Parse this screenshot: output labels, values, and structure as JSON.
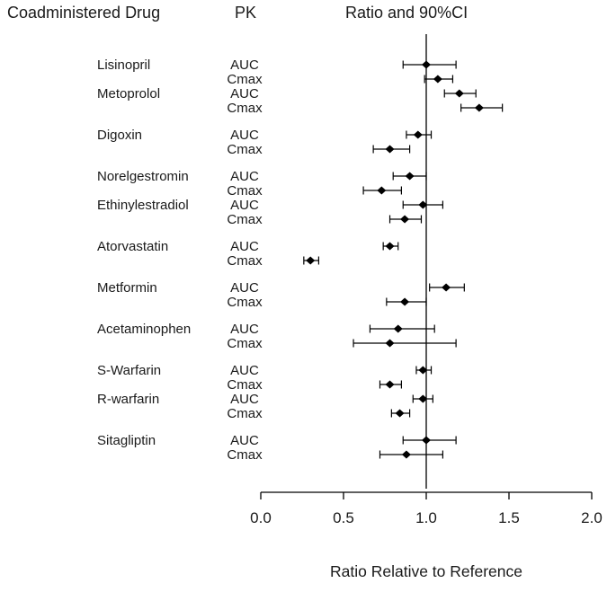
{
  "colors": {
    "text": "#1a1a1a",
    "line": "#000000",
    "marker": "#000000",
    "background": "#ffffff"
  },
  "chart_data": {
    "type": "scatter",
    "subtype": "forest",
    "title": "",
    "header": {
      "drug": "Coadministered Drug",
      "pk": "PK",
      "ratio": "Ratio and 90%CI"
    },
    "xlabel": "Ratio Relative to Reference",
    "xlim": [
      0.0,
      2.0
    ],
    "x_ticks": [
      0.0,
      0.5,
      1.0,
      1.5,
      2.0
    ],
    "x_tick_labels": [
      "0.0",
      "0.5",
      "1.0",
      "1.5",
      "2.0"
    ],
    "reference_line": 1.0,
    "ci_level": "90%",
    "legend_position": "none",
    "grid": false,
    "rows": [
      {
        "drug": "Lisinopril",
        "pk": "AUC",
        "ratio": 1.0,
        "ci_low": 0.86,
        "ci_high": 1.18
      },
      {
        "drug": "",
        "pk": "Cmax",
        "ratio": 1.07,
        "ci_low": 0.99,
        "ci_high": 1.16
      },
      {
        "drug": "Metoprolol",
        "pk": "AUC",
        "ratio": 1.2,
        "ci_low": 1.11,
        "ci_high": 1.3
      },
      {
        "drug": "",
        "pk": "Cmax",
        "ratio": 1.32,
        "ci_low": 1.21,
        "ci_high": 1.46
      },
      {
        "drug": "Digoxin",
        "pk": "AUC",
        "ratio": 0.95,
        "ci_low": 0.88,
        "ci_high": 1.03,
        "group_gap": true
      },
      {
        "drug": "",
        "pk": "Cmax",
        "ratio": 0.78,
        "ci_low": 0.68,
        "ci_high": 0.9
      },
      {
        "drug": "Norelgestromin",
        "pk": "AUC",
        "ratio": 0.9,
        "ci_low": 0.8,
        "ci_high": 1.0,
        "group_gap": true
      },
      {
        "drug": "",
        "pk": "Cmax",
        "ratio": 0.73,
        "ci_low": 0.62,
        "ci_high": 0.85
      },
      {
        "drug": "Ethinylestradiol",
        "pk": "AUC",
        "ratio": 0.98,
        "ci_low": 0.86,
        "ci_high": 1.1
      },
      {
        "drug": "",
        "pk": "Cmax",
        "ratio": 0.87,
        "ci_low": 0.78,
        "ci_high": 0.97
      },
      {
        "drug": "Atorvastatin",
        "pk": "AUC",
        "ratio": 0.78,
        "ci_low": 0.74,
        "ci_high": 0.83,
        "group_gap": true
      },
      {
        "drug": "",
        "pk": "Cmax",
        "ratio": 0.3,
        "ci_low": 0.26,
        "ci_high": 0.35
      },
      {
        "drug": "Metformin",
        "pk": "AUC",
        "ratio": 1.12,
        "ci_low": 1.02,
        "ci_high": 1.23,
        "group_gap": true
      },
      {
        "drug": "",
        "pk": "Cmax",
        "ratio": 0.87,
        "ci_low": 0.76,
        "ci_high": 1.0
      },
      {
        "drug": "Acetaminophen",
        "pk": "AUC",
        "ratio": 0.83,
        "ci_low": 0.66,
        "ci_high": 1.05,
        "group_gap": true
      },
      {
        "drug": "",
        "pk": "Cmax",
        "ratio": 0.78,
        "ci_low": 0.56,
        "ci_high": 1.18
      },
      {
        "drug": "S-Warfarin",
        "pk": "AUC",
        "ratio": 0.98,
        "ci_low": 0.94,
        "ci_high": 1.03,
        "group_gap": true
      },
      {
        "drug": "",
        "pk": "Cmax",
        "ratio": 0.78,
        "ci_low": 0.72,
        "ci_high": 0.85
      },
      {
        "drug": "R-warfarin",
        "pk": "AUC",
        "ratio": 0.98,
        "ci_low": 0.92,
        "ci_high": 1.04
      },
      {
        "drug": "",
        "pk": "Cmax",
        "ratio": 0.84,
        "ci_low": 0.79,
        "ci_high": 0.9
      },
      {
        "drug": "Sitagliptin",
        "pk": "AUC",
        "ratio": 1.0,
        "ci_low": 0.86,
        "ci_high": 1.18,
        "group_gap": true
      },
      {
        "drug": "",
        "pk": "Cmax",
        "ratio": 0.88,
        "ci_low": 0.72,
        "ci_high": 1.1
      }
    ]
  }
}
